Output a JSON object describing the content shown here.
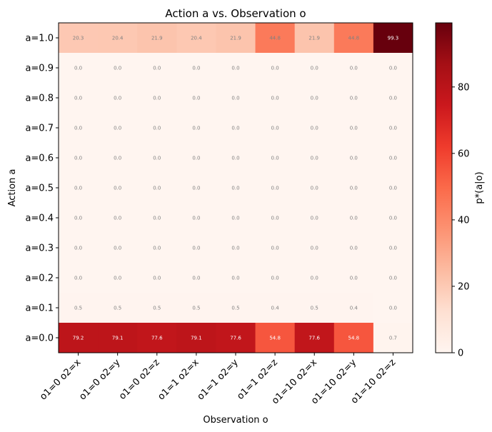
{
  "chart_data": {
    "type": "heatmap",
    "title": "Action a vs. Observation o",
    "xlabel": "Observation o",
    "ylabel": "Action a",
    "x_categories": [
      "o1=0 o2=x",
      "o1=0 o2=y",
      "o1=0 o2=z",
      "o1=1 o2=x",
      "o1=1 o2=y",
      "o1=1 o2=z",
      "o1=10 o2=x",
      "o1=10 o2=y",
      "o1=10 o2=z"
    ],
    "y_categories": [
      "a=1.0",
      "a=0.9",
      "a=0.8",
      "a=0.7",
      "a=0.6",
      "a=0.5",
      "a=0.4",
      "a=0.3",
      "a=0.2",
      "a=0.1",
      "a=0.0"
    ],
    "values": [
      [
        20.3,
        20.4,
        21.9,
        20.4,
        21.9,
        44.8,
        21.9,
        44.8,
        99.3
      ],
      [
        0.0,
        0.0,
        0.0,
        0.0,
        0.0,
        0.0,
        0.0,
        0.0,
        0.0
      ],
      [
        0.0,
        0.0,
        0.0,
        0.0,
        0.0,
        0.0,
        0.0,
        0.0,
        0.0
      ],
      [
        0.0,
        0.0,
        0.0,
        0.0,
        0.0,
        0.0,
        0.0,
        0.0,
        0.0
      ],
      [
        0.0,
        0.0,
        0.0,
        0.0,
        0.0,
        0.0,
        0.0,
        0.0,
        0.0
      ],
      [
        0.0,
        0.0,
        0.0,
        0.0,
        0.0,
        0.0,
        0.0,
        0.0,
        0.0
      ],
      [
        0.0,
        0.0,
        0.0,
        0.0,
        0.0,
        0.0,
        0.0,
        0.0,
        0.0
      ],
      [
        0.0,
        0.0,
        0.0,
        0.0,
        0.0,
        0.0,
        0.0,
        0.0,
        0.0
      ],
      [
        0.0,
        0.0,
        0.0,
        0.0,
        0.0,
        0.0,
        0.0,
        0.0,
        0.0
      ],
      [
        0.5,
        0.5,
        0.5,
        0.5,
        0.5,
        0.4,
        0.5,
        0.4,
        0.0
      ],
      [
        79.2,
        79.1,
        77.6,
        79.1,
        77.6,
        54.8,
        77.6,
        54.8,
        0.7
      ]
    ],
    "colorbar": {
      "label": "p*(a|o)",
      "range": [
        0,
        99.3
      ],
      "ticks": [
        0,
        20,
        40,
        60,
        80
      ],
      "colormap": "Reds"
    },
    "grid": false
  }
}
